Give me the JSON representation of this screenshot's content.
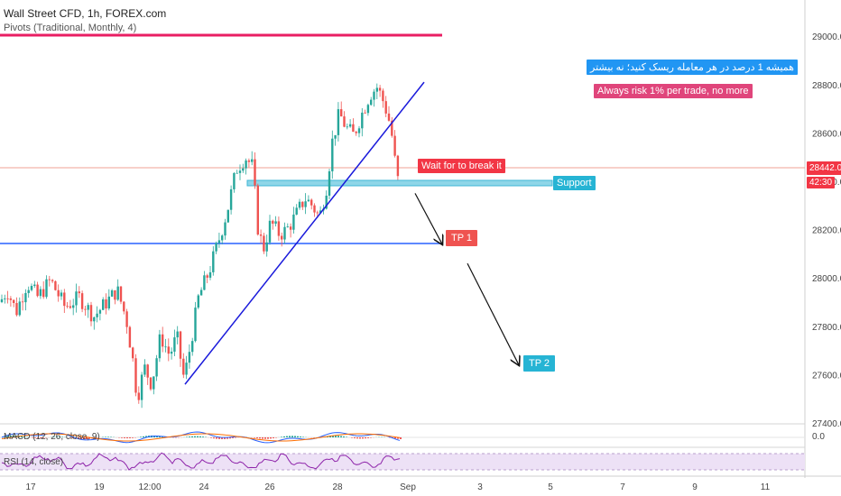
{
  "header": {
    "title": "Wall Street CFD, 1h, FOREX.com",
    "indicator": "Pivots (Traditional, Monthly, 4)"
  },
  "annotations": {
    "persian_note": "همیشه 1 درصد در هر معامله ریسک کنید؛ نه بیشتر",
    "risk_note": "Always risk 1% per trade, no more",
    "wait_label": "Wait for to break it",
    "support_label": "Support",
    "tp1_label": "TP 1",
    "tp2_label": "TP 2"
  },
  "price_tags": {
    "last_price": "28442.0",
    "countdown": "42:30"
  },
  "panes": {
    "macd_label": "MACD (12, 26, close, 9)",
    "macd_value": "0.0",
    "rsi_label": "RSI (14, close)"
  },
  "colors": {
    "up": "#26a69a",
    "down": "#ef5350",
    "trendline": "#1a1adb",
    "pivot": "#e91e63",
    "support_line": "#2962ff",
    "support_zone": "#7ed3e8",
    "wait_badge": "#f23645",
    "tp1_badge": "#ef5350",
    "tp2_badge": "#26b4d4",
    "support_badge": "#26b4d4",
    "persian_badge": "#2196f3",
    "risk_badge": "#e0457b",
    "rsi": "#8e24aa"
  },
  "chart_data": {
    "type": "candlestick",
    "xlabel": "",
    "ylabel": "",
    "ylim": [
      27400,
      29150
    ],
    "y_ticks": [
      "29000.0",
      "28800.0",
      "28600.0",
      "28400.0",
      "28200.0",
      "28000.0",
      "27800.0",
      "27600.0",
      "27400.0"
    ],
    "x_ticks": [
      "17",
      "19",
      "12:00",
      "24",
      "26",
      "28",
      "Sep",
      "3",
      "5",
      "7",
      "9",
      "11"
    ],
    "grid": false,
    "close_path": [
      {
        "x": 0,
        "y": 27900
      },
      {
        "x": 8,
        "y": 27950
      },
      {
        "x": 18,
        "y": 27860
      },
      {
        "x": 30,
        "y": 27980
      },
      {
        "x": 42,
        "y": 27920
      },
      {
        "x": 56,
        "y": 27990
      },
      {
        "x": 72,
        "y": 27880
      },
      {
        "x": 88,
        "y": 27920
      },
      {
        "x": 104,
        "y": 27840
      },
      {
        "x": 118,
        "y": 27900
      },
      {
        "x": 130,
        "y": 27950
      },
      {
        "x": 140,
        "y": 27830
      },
      {
        "x": 148,
        "y": 27640
      },
      {
        "x": 152,
        "y": 27500
      },
      {
        "x": 160,
        "y": 27630
      },
      {
        "x": 168,
        "y": 27560
      },
      {
        "x": 178,
        "y": 27760
      },
      {
        "x": 188,
        "y": 27680
      },
      {
        "x": 196,
        "y": 27760
      },
      {
        "x": 204,
        "y": 27580
      },
      {
        "x": 210,
        "y": 27700
      },
      {
        "x": 220,
        "y": 27920
      },
      {
        "x": 232,
        "y": 28030
      },
      {
        "x": 242,
        "y": 28150
      },
      {
        "x": 252,
        "y": 28280
      },
      {
        "x": 262,
        "y": 28450
      },
      {
        "x": 272,
        "y": 28500
      },
      {
        "x": 280,
        "y": 28460
      },
      {
        "x": 286,
        "y": 28200
      },
      {
        "x": 292,
        "y": 28120
      },
      {
        "x": 300,
        "y": 28230
      },
      {
        "x": 310,
        "y": 28180
      },
      {
        "x": 318,
        "y": 28200
      },
      {
        "x": 328,
        "y": 28260
      },
      {
        "x": 338,
        "y": 28330
      },
      {
        "x": 346,
        "y": 28300
      },
      {
        "x": 354,
        "y": 28250
      },
      {
        "x": 362,
        "y": 28380
      },
      {
        "x": 368,
        "y": 28560
      },
      {
        "x": 376,
        "y": 28680
      },
      {
        "x": 384,
        "y": 28620
      },
      {
        "x": 392,
        "y": 28590
      },
      {
        "x": 400,
        "y": 28670
      },
      {
        "x": 410,
        "y": 28760
      },
      {
        "x": 418,
        "y": 28790
      },
      {
        "x": 426,
        "y": 28720
      },
      {
        "x": 432,
        "y": 28640
      },
      {
        "x": 436,
        "y": 28550
      },
      {
        "x": 440,
        "y": 28390
      },
      {
        "x": 443,
        "y": 28442
      }
    ],
    "levels": {
      "support_zone": [
        28365,
        28385
      ],
      "support_line": 28110,
      "last_price": 28442,
      "pivot": 29050
    },
    "trendline": [
      {
        "x": 205,
        "y": 27560
      },
      {
        "x": 470,
        "y": 28810
      }
    ],
    "forecast_arrows": [
      [
        {
          "x": 460,
          "y": 28350
        },
        {
          "x": 490,
          "y": 28140
        }
      ],
      [
        {
          "x": 518,
          "y": 28060
        },
        {
          "x": 575,
          "y": 27640
        }
      ]
    ]
  }
}
